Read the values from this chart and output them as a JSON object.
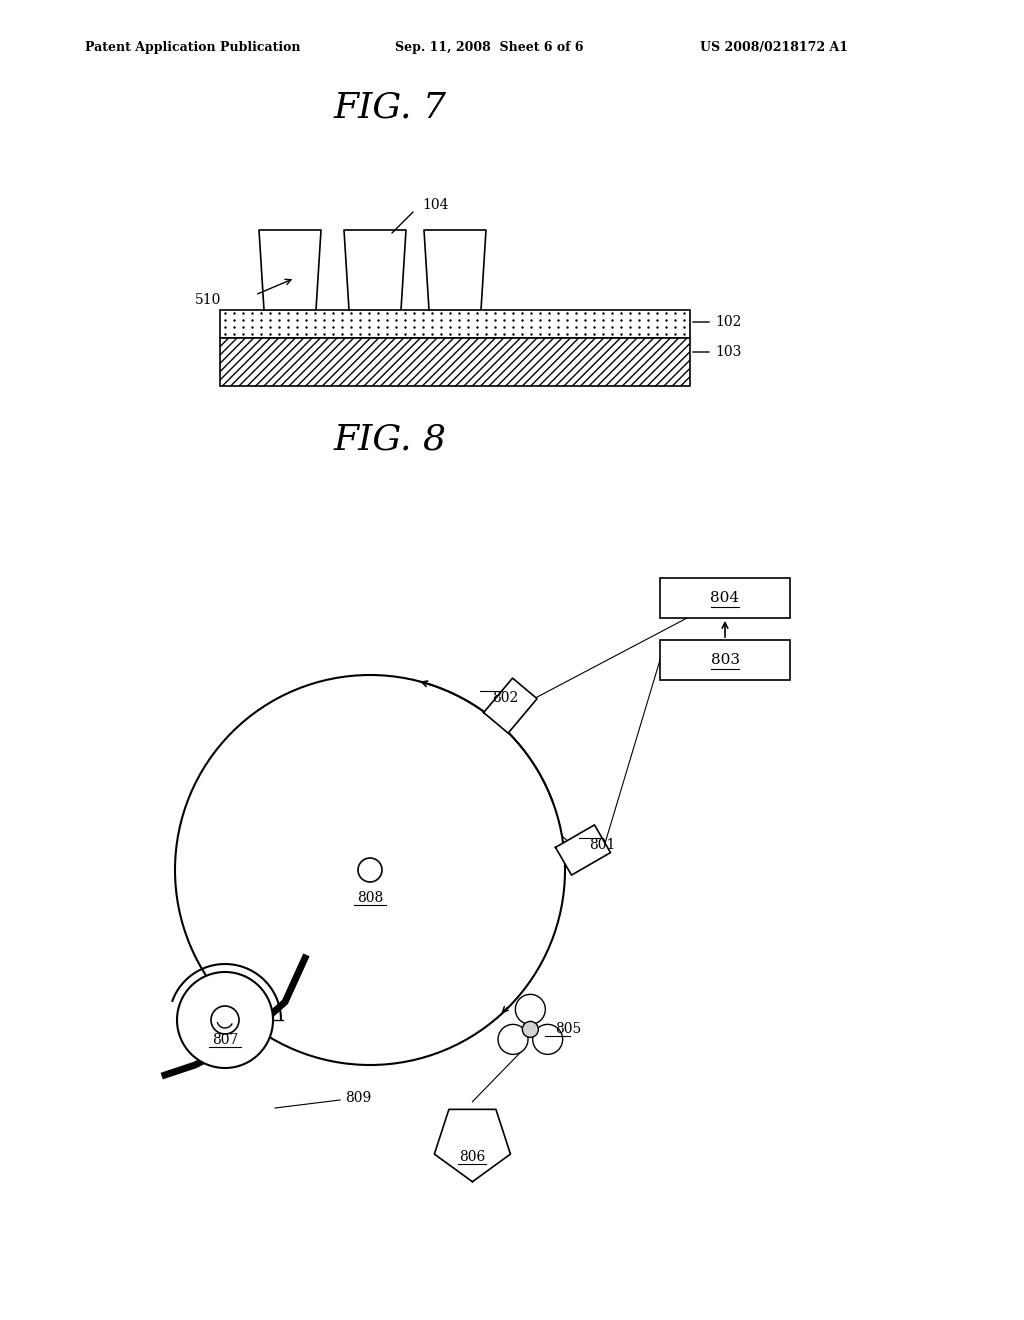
{
  "header_left": "Patent Application Publication",
  "header_mid": "Sep. 11, 2008  Sheet 6 of 6",
  "header_right": "US 2008/0218172 A1",
  "fig7_title": "FIG. 7",
  "fig8_title": "FIG. 8",
  "bg_color": "#ffffff",
  "line_color": "#000000",
  "label_510": "510",
  "label_104": "104",
  "label_102": "102",
  "label_103": "103",
  "label_801": "801",
  "label_802": "802",
  "label_803": "803",
  "label_804": "804",
  "label_805": "805",
  "label_806": "806",
  "label_807": "807",
  "label_808": "808",
  "label_809": "809"
}
